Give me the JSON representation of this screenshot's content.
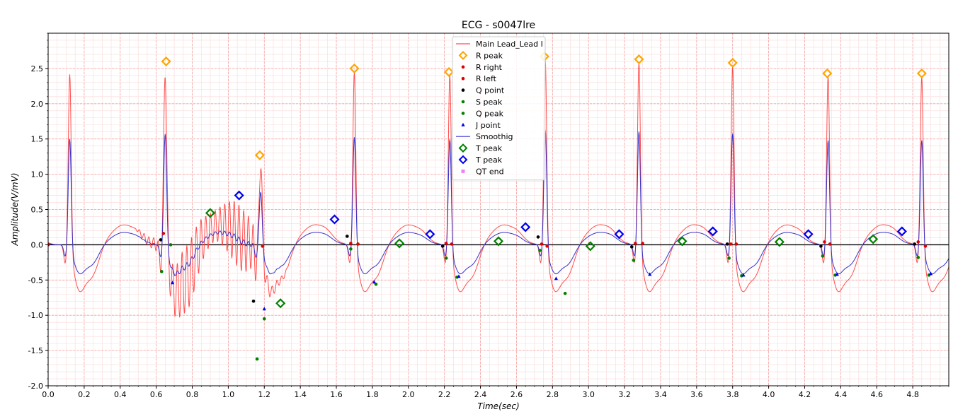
{
  "chart_data": {
    "type": "line",
    "title": "ECG - s0047lre",
    "xlabel": "Time(sec)",
    "ylabel": "Amplitude(V/mV)",
    "xlim": [
      0,
      5
    ],
    "ylim": [
      -2,
      3
    ],
    "xticks": [
      "0.0",
      "0.2",
      "0.4",
      "0.6",
      "0.8",
      "1.0",
      "1.2",
      "1.4",
      "1.6",
      "1.8",
      "2.0",
      "2.2",
      "2.4",
      "2.6",
      "2.8",
      "3.0",
      "3.2",
      "3.4",
      "3.6",
      "3.8",
      "4.0",
      "4.2",
      "4.4",
      "4.6",
      "4.8"
    ],
    "yticks": [
      "-2.0",
      "-1.5",
      "-1.0",
      "-0.5",
      "0.0",
      "0.5",
      "1.0",
      "1.5",
      "2.0",
      "2.5"
    ],
    "grid": true,
    "legend_position": "top-center",
    "colors": {
      "main": "#ff4d4d",
      "smooth": "#3333cc",
      "r_peak": "#ffa500",
      "r_point": "#e00000",
      "q_point": "#000000",
      "s_peak": "#008000",
      "j_point": "#0000ee",
      "t_peak_green": "#008000",
      "t_peak_blue": "#0000ee",
      "qt_end": "#ee82ee",
      "grid_major": "#f4a0a0",
      "grid_minor": "#fbd8d8"
    },
    "legend": [
      {
        "label": "Main Lead_Lead I",
        "kind": "line",
        "color": "#ff4d4d"
      },
      {
        "label": "R peak",
        "kind": "diamond",
        "color": "#ffa500"
      },
      {
        "label": "R right",
        "kind": "dot",
        "color": "#e00000"
      },
      {
        "label": "R left",
        "kind": "dot",
        "color": "#e00000"
      },
      {
        "label": "Q point",
        "kind": "dot",
        "color": "#000000"
      },
      {
        "label": "S peak",
        "kind": "dot",
        "color": "#008000"
      },
      {
        "label": "Q peak",
        "kind": "dot",
        "color": "#008000"
      },
      {
        "label": "J point",
        "kind": "triangle",
        "color": "#0000ee"
      },
      {
        "label": "Smoothig",
        "kind": "line",
        "color": "#3333cc"
      },
      {
        "label": "T peak",
        "kind": "diamond",
        "color": "#008000"
      },
      {
        "label": "T peak",
        "kind": "diamond",
        "color": "#0000ee"
      },
      {
        "label": "QT end",
        "kind": "square",
        "color": "#ee82ee"
      }
    ],
    "beats_r_times": [
      0.12,
      0.65,
      1.18,
      1.7,
      2.23,
      2.76,
      3.28,
      3.8,
      4.33,
      4.85
    ],
    "beats_r_amp": [
      2.46,
      2.6,
      1.27,
      2.5,
      2.45,
      2.67,
      2.63,
      2.58,
      2.43,
      2.43
    ],
    "r_peaks": [
      {
        "x": 0.655,
        "y": 2.6
      },
      {
        "x": 1.175,
        "y": 1.27
      },
      {
        "x": 1.7,
        "y": 2.5
      },
      {
        "x": 2.225,
        "y": 2.45
      },
      {
        "x": 2.755,
        "y": 2.67
      },
      {
        "x": 3.28,
        "y": 2.63
      },
      {
        "x": 3.8,
        "y": 2.58
      },
      {
        "x": 4.325,
        "y": 2.43
      },
      {
        "x": 4.85,
        "y": 2.43
      }
    ],
    "r_right": [
      {
        "x": 0.0,
        "y": 0.0
      },
      {
        "x": 0.64,
        "y": 0.16
      },
      {
        "x": 1.19,
        "y": -0.02
      },
      {
        "x": 1.68,
        "y": 0.02
      },
      {
        "x": 1.72,
        "y": 0.01
      },
      {
        "x": 2.21,
        "y": 0.02
      },
      {
        "x": 2.24,
        "y": 0.01
      },
      {
        "x": 2.74,
        "y": 0.01
      },
      {
        "x": 2.77,
        "y": -0.02
      },
      {
        "x": 3.26,
        "y": 0.02
      },
      {
        "x": 3.3,
        "y": 0.02
      },
      {
        "x": 3.79,
        "y": 0.01
      },
      {
        "x": 3.82,
        "y": 0.01
      },
      {
        "x": 4.31,
        "y": 0.04
      },
      {
        "x": 4.34,
        "y": 0.01
      },
      {
        "x": 4.83,
        "y": 0.04
      },
      {
        "x": 4.87,
        "y": -0.02
      }
    ],
    "q_points": [
      {
        "x": 0.625,
        "y": 0.07
      },
      {
        "x": 1.14,
        "y": -0.8
      },
      {
        "x": 1.66,
        "y": 0.12
      },
      {
        "x": 2.19,
        "y": -0.02
      },
      {
        "x": 2.72,
        "y": 0.11
      },
      {
        "x": 3.24,
        "y": -0.03
      },
      {
        "x": 3.77,
        "y": 0.01
      },
      {
        "x": 4.29,
        "y": -0.02
      },
      {
        "x": 4.81,
        "y": 0.01
      }
    ],
    "s_peaks": [
      {
        "x": 0.63,
        "y": -0.38
      },
      {
        "x": 0.68,
        "y": 0.0
      },
      {
        "x": 1.16,
        "y": -1.62
      },
      {
        "x": 1.2,
        "y": -1.05
      },
      {
        "x": 1.68,
        "y": -0.06
      },
      {
        "x": 1.82,
        "y": -0.56
      },
      {
        "x": 2.21,
        "y": -0.19
      },
      {
        "x": 2.27,
        "y": -0.46
      },
      {
        "x": 2.73,
        "y": -0.08
      },
      {
        "x": 2.87,
        "y": -0.69
      },
      {
        "x": 3.25,
        "y": -0.22
      },
      {
        "x": 3.78,
        "y": -0.19
      },
      {
        "x": 3.85,
        "y": -0.44
      },
      {
        "x": 4.3,
        "y": -0.16
      },
      {
        "x": 4.37,
        "y": -0.43
      },
      {
        "x": 4.83,
        "y": -0.18
      },
      {
        "x": 4.89,
        "y": -0.43
      }
    ],
    "j_points": [
      {
        "x": 0.69,
        "y": -0.54
      },
      {
        "x": 1.2,
        "y": -0.91
      },
      {
        "x": 1.81,
        "y": -0.53
      },
      {
        "x": 2.28,
        "y": -0.45
      },
      {
        "x": 2.82,
        "y": -0.48
      },
      {
        "x": 3.34,
        "y": -0.42
      },
      {
        "x": 3.86,
        "y": -0.43
      },
      {
        "x": 4.38,
        "y": -0.42
      },
      {
        "x": 4.9,
        "y": -0.41
      }
    ],
    "t_peaks_green": [
      {
        "x": 0.9,
        "y": 0.45
      },
      {
        "x": 1.29,
        "y": -0.83
      },
      {
        "x": 1.95,
        "y": 0.02
      },
      {
        "x": 2.5,
        "y": 0.05
      },
      {
        "x": 3.01,
        "y": -0.02
      },
      {
        "x": 3.52,
        "y": 0.05
      },
      {
        "x": 4.06,
        "y": 0.04
      },
      {
        "x": 4.58,
        "y": 0.08
      }
    ],
    "t_peaks_blue": [
      {
        "x": 1.06,
        "y": 0.7
      },
      {
        "x": 1.59,
        "y": 0.36
      },
      {
        "x": 2.12,
        "y": 0.15
      },
      {
        "x": 2.65,
        "y": 0.25
      },
      {
        "x": 3.17,
        "y": 0.15
      },
      {
        "x": 3.69,
        "y": 0.19
      },
      {
        "x": 4.22,
        "y": 0.15
      },
      {
        "x": 4.74,
        "y": 0.19
      }
    ],
    "noise_segments": [
      {
        "from": 0.48,
        "to": 1.34,
        "amplitude": 0.55
      }
    ]
  }
}
